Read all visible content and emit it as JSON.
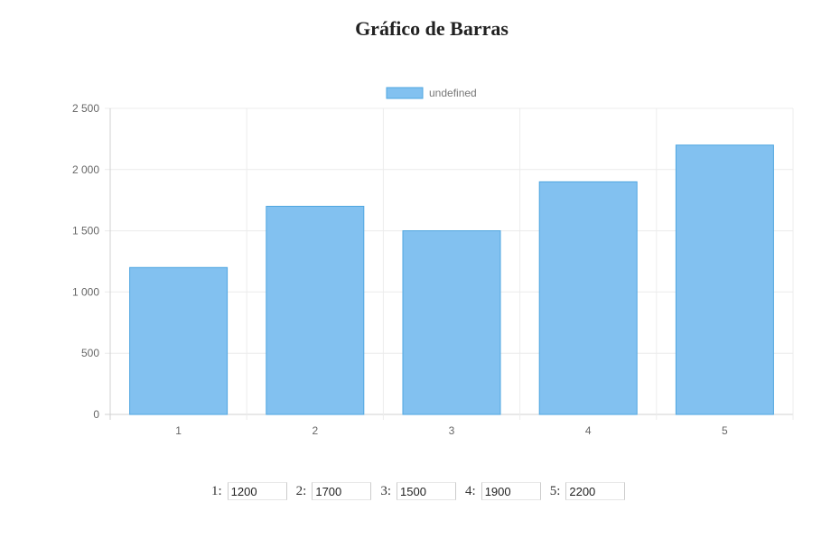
{
  "page": {
    "title": "Gráfico de Barras"
  },
  "chart_data": {
    "type": "bar",
    "categories": [
      "1",
      "2",
      "3",
      "4",
      "5"
    ],
    "series": [
      {
        "name": "undefined",
        "values": [
          1200,
          1700,
          1500,
          1900,
          2200
        ]
      }
    ],
    "ylim": [
      0,
      2500
    ],
    "yticks": [
      0,
      500,
      1000,
      1500,
      2000,
      2500
    ],
    "ytick_labels": [
      "0",
      "500",
      "1 000",
      "1 500",
      "2 000",
      "2 500"
    ],
    "grid": true,
    "legend_position": "top-center",
    "colors": {
      "bar_fill": "#82c1f0",
      "bar_border": "#4fa6e0"
    }
  },
  "inputs": [
    {
      "label": "1:",
      "value": "1200"
    },
    {
      "label": "2:",
      "value": "1700"
    },
    {
      "label": "3:",
      "value": "1500"
    },
    {
      "label": "4:",
      "value": "1900"
    },
    {
      "label": "5:",
      "value": "2200"
    }
  ]
}
